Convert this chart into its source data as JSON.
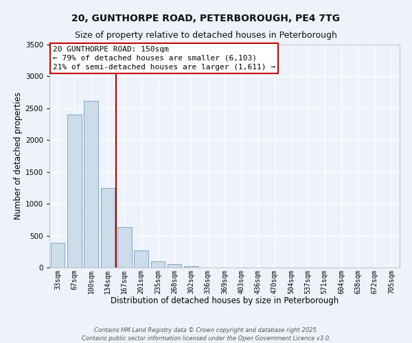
{
  "title": "20, GUNTHORPE ROAD, PETERBOROUGH, PE4 7TG",
  "subtitle": "Size of property relative to detached houses in Peterborough",
  "xlabel": "Distribution of detached houses by size in Peterborough",
  "ylabel": "Number of detached properties",
  "bar_labels": [
    "33sqm",
    "67sqm",
    "100sqm",
    "134sqm",
    "167sqm",
    "201sqm",
    "235sqm",
    "268sqm",
    "302sqm",
    "336sqm",
    "369sqm",
    "403sqm",
    "436sqm",
    "470sqm",
    "504sqm",
    "537sqm",
    "571sqm",
    "604sqm",
    "638sqm",
    "672sqm",
    "705sqm"
  ],
  "bar_values": [
    390,
    2400,
    2620,
    1250,
    640,
    270,
    95,
    50,
    20,
    5,
    2,
    0,
    0,
    0,
    0,
    0,
    0,
    0,
    0,
    0,
    0
  ],
  "bar_color": "#ccdce8",
  "bar_edgecolor": "#7aaac8",
  "ylim": [
    0,
    3500
  ],
  "yticks": [
    0,
    500,
    1000,
    1500,
    2000,
    2500,
    3000,
    3500
  ],
  "vline_color": "#aa0000",
  "vline_pos": 3.48,
  "annotation_title": "20 GUNTHORPE ROAD: 150sqm",
  "annotation_line2": "← 79% of detached houses are smaller (6,103)",
  "annotation_line3": "21% of semi-detached houses are larger (1,611) →",
  "annotation_box_facecolor": "#ffffff",
  "annotation_box_edgecolor": "#cc0000",
  "footer_line1": "Contains HM Land Registry data © Crown copyright and database right 2025.",
  "footer_line2": "Contains public sector information licensed under the Open Government Licence v3.0.",
  "background_color": "#eef2fa",
  "grid_color": "#ffffff",
  "title_fontsize": 10,
  "subtitle_fontsize": 9,
  "axis_label_fontsize": 8.5,
  "tick_fontsize": 7,
  "annotation_fontsize": 8,
  "footer_fontsize": 6
}
